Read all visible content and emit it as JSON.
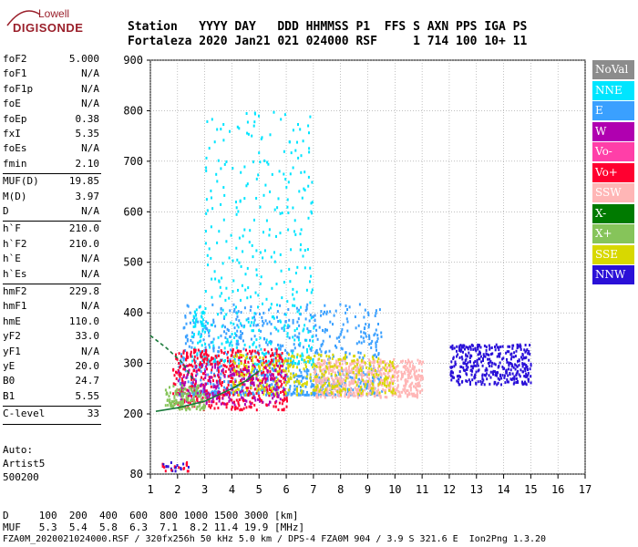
{
  "logo": {
    "line1": "Lowell",
    "line2": "DIGISONDE"
  },
  "header": {
    "row1": "Station   YYYY DAY   DDD HHMMSS P1  FFS S AXN PPS IGA PS",
    "row2": "Fortaleza 2020 Jan21 021 024000 RSF     1 714 100 10+ 11"
  },
  "params": [
    {
      "key": "foF2",
      "value": "5.000"
    },
    {
      "key": "foF1",
      "value": "N/A"
    },
    {
      "key": "foF1p",
      "value": "N/A"
    },
    {
      "key": "foE",
      "value": "N/A"
    },
    {
      "key": "foEp",
      "value": "0.38"
    },
    {
      "key": "fxI",
      "value": "5.35"
    },
    {
      "key": "foEs",
      "value": "N/A"
    },
    {
      "key": "fmin",
      "value": "2.10"
    },
    {
      "key": "MUF(D)",
      "value": "19.85"
    },
    {
      "key": "M(D)",
      "value": "3.97"
    },
    {
      "key": "D",
      "value": "N/A"
    },
    {
      "key": "h`F",
      "value": "210.0"
    },
    {
      "key": "h`F2",
      "value": "210.0"
    },
    {
      "key": "h`E",
      "value": "N/A"
    },
    {
      "key": "h`Es",
      "value": "N/A"
    },
    {
      "key": "hmF2",
      "value": "229.8"
    },
    {
      "key": "hmF1",
      "value": "N/A"
    },
    {
      "key": "hmE",
      "value": "110.0"
    },
    {
      "key": "yF2",
      "value": "33.0"
    },
    {
      "key": "yF1",
      "value": "N/A"
    },
    {
      "key": "yE",
      "value": "20.0"
    },
    {
      "key": "B0",
      "value": "24.7"
    },
    {
      "key": "B1",
      "value": "5.55"
    },
    {
      "key": "C-level",
      "value": "33"
    }
  ],
  "auto": {
    "label": "Auto:",
    "name": "Artist5",
    "version": "500200"
  },
  "legend": [
    {
      "label": "NoVal",
      "color": "#8c8c8c"
    },
    {
      "label": "NNE",
      "color": "#00e5ff"
    },
    {
      "label": "E",
      "color": "#3aa0ff"
    },
    {
      "label": "W",
      "color": "#b000b0"
    },
    {
      "label": "Vo-",
      "color": "#ff3fa8"
    },
    {
      "label": "Vo+",
      "color": "#ff0030"
    },
    {
      "label": "SSW",
      "color": "#ffb6b6"
    },
    {
      "label": "X-",
      "color": "#007a00"
    },
    {
      "label": "X+",
      "color": "#86c45a"
    },
    {
      "label": "SSE",
      "color": "#d8d800"
    },
    {
      "label": "NNW",
      "color": "#2a10d8"
    }
  ],
  "footer": {
    "row1": "D     100  200  400  600  800 1000 1500 3000 [km]",
    "row2": "MUF   5.3  5.4  5.8  6.3  7.1  8.2 11.4 19.9 [MHz]",
    "row3": "FZA0M_2020021024000.RSF / 320fx256h 50 kHz 5.0 km / DPS-4 FZA0M 904 / 3.9 S 321.6 E  Ion2Png 1.3.20"
  },
  "chart_data": {
    "type": "scatter",
    "x_ticks": [
      "1",
      "2",
      "3",
      "4",
      "5",
      "6",
      "7",
      "8",
      "9",
      "10",
      "11",
      "12",
      "13",
      "14",
      "15",
      "16",
      "17"
    ],
    "y_ticks": [
      "80",
      "200",
      "300",
      "400",
      "500",
      "600",
      "700",
      "800",
      "900"
    ],
    "xlim": [
      1,
      17
    ],
    "ylim": [
      80,
      900
    ],
    "y_scale_note": "virtual height axis, ticks 80 to 900 km",
    "trace_line": {
      "color": "#1a7a3a",
      "x": [
        1.2,
        2.0,
        3.0,
        4.0,
        4.5,
        5.0
      ],
      "y": [
        205,
        212,
        225,
        250,
        265,
        285
      ]
    },
    "dashed_line": {
      "color": "#1a7a3a",
      "x": [
        1.0,
        1.6,
        2.2,
        2.6
      ],
      "y": [
        355,
        330,
        300,
        265
      ]
    },
    "clusters": [
      {
        "label": "E",
        "x": [
          2,
          9.5
        ],
        "y": [
          240,
          420
        ]
      },
      {
        "label": "NNE",
        "x": [
          2.5,
          7
        ],
        "y": [
          300,
          800
        ]
      },
      {
        "label": "Vo+",
        "x": [
          1.8,
          6
        ],
        "y": [
          210,
          330
        ]
      },
      {
        "label": "SSW",
        "x": [
          7,
          11
        ],
        "y": [
          235,
          310
        ]
      },
      {
        "label": "SSE",
        "x": [
          4,
          10
        ],
        "y": [
          240,
          320
        ]
      },
      {
        "label": "NNW",
        "x": [
          12,
          15
        ],
        "y": [
          260,
          340
        ]
      },
      {
        "label": "W",
        "x": [
          2,
          6
        ],
        "y": [
          220,
          300
        ]
      },
      {
        "label": "X+",
        "x": [
          1.5,
          3
        ],
        "y": [
          210,
          260
        ]
      }
    ]
  }
}
